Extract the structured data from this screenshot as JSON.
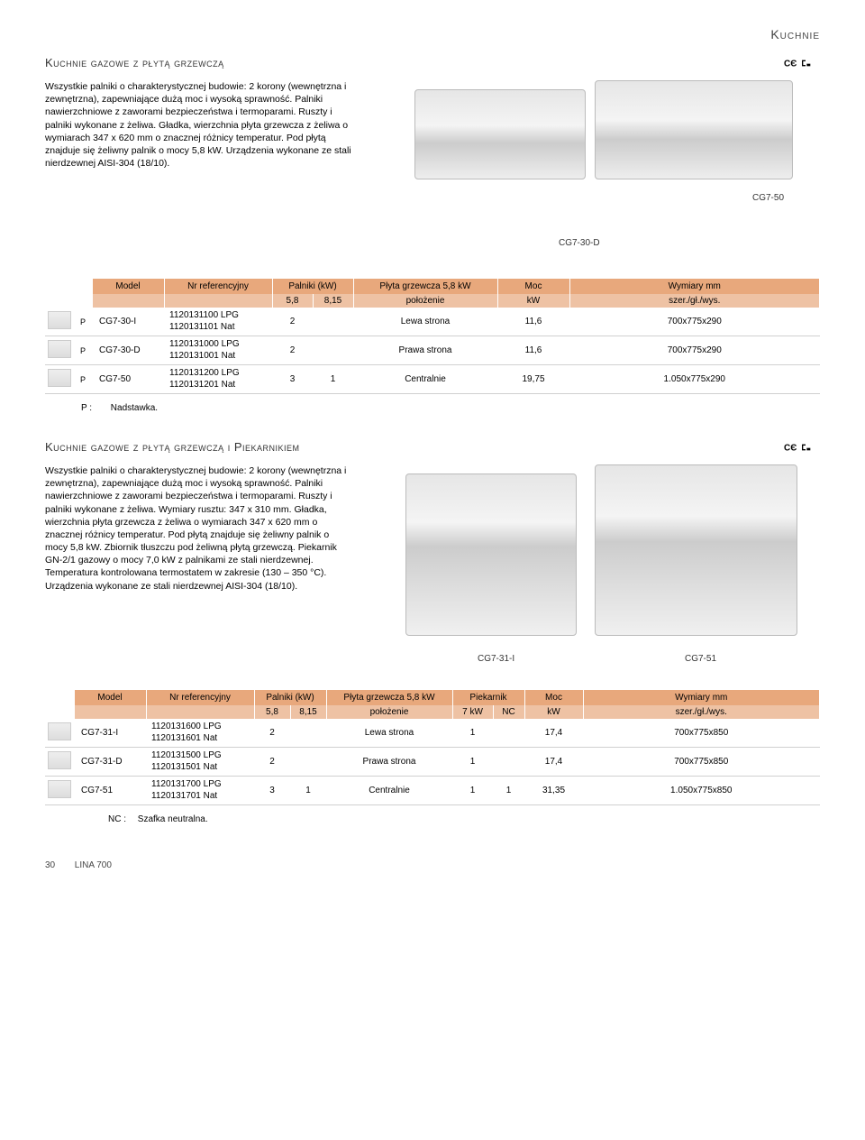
{
  "header": {
    "top_right": "Kuchnie"
  },
  "sections": [
    {
      "title": "Kuchnie gazowe z płytą grzewczą",
      "desc": "Wszystkie palniki o charakterystycznej budowie: 2 korony (wewnętrzna i zewnętrzna), zapewniające dużą moc i wysoką sprawność. Palniki nawierzchniowe z zaworami bezpieczeństwa i termoparami. Ruszty i palniki wykonane z żeliwa. Gładka, wierzchnia płyta grzewcza z żeliwa o wymiarach 347 x 620 mm o znacznej różnicy temperatur. Pod płytą znajduje się żeliwny palnik o mocy 5,8 kW. Urządzenia wykonane ze stali nierdzewnej AISI-304 (18/10).",
      "image_labels": {
        "back": "CG7-30-D",
        "right": "CG7-50"
      }
    },
    {
      "title": "Kuchnie gazowe z płytą grzewczą i Piekarnikiem",
      "desc": "Wszystkie palniki o charakterystycznej budowie: 2 korony (wewnętrzna i zewnętrzna), zapewniające dużą moc i wysoką sprawność. Palniki nawierzchniowe z zaworami bezpieczeństwa i termoparami. Ruszty i palniki wykonane z żeliwa. Wymiary rusztu: 347 x 310 mm. Gładka, wierzchnia płyta grzewcza z żeliwa o wymiarach 347 x 620 mm o znacznej różnicy temperatur. Pod płytą znajduje się żeliwny palnik o mocy 5,8 kW. Zbiornik tłuszczu pod żeliwną płytą grzewczą. Piekarnik GN-2/1 gazowy o mocy 7,0 kW z palnikami ze stali nierdzewnej. Temperatura kontrolowana termostatem w zakresie (130 – 350 °C). Urządzenia wykonane ze stali nierdzewnej AISI-304 (18/10).",
      "image_labels": {
        "left": "CG7-31-I",
        "right": "CG7-51"
      }
    }
  ],
  "table1": {
    "header_row1": [
      "Model",
      "Nr referencyjny",
      "Palniki (kW)",
      "Płyta grzewcza 5,8 kW",
      "Moc",
      "Wymiary mm"
    ],
    "header_row2": [
      "",
      "",
      "5,8",
      "8,15",
      "położenie",
      "kW",
      "szer./gł./wys."
    ],
    "rows": [
      {
        "p": "P",
        "model": "CG7-30-I",
        "ref1": "1120131100 LPG",
        "ref2": "1120131101 Nat",
        "b58": "2",
        "b815": "",
        "pos": "Lewa strona",
        "moc": "11,6",
        "dim": "700x775x290"
      },
      {
        "p": "P",
        "model": "CG7-30-D",
        "ref1": "1120131000 LPG",
        "ref2": "1120131001 Nat",
        "b58": "2",
        "b815": "",
        "pos": "Prawa strona",
        "moc": "11,6",
        "dim": "700x775x290"
      },
      {
        "p": "P",
        "model": "CG7-50",
        "ref1": "1120131200 LPG",
        "ref2": "1120131201 Nat",
        "b58": "3",
        "b815": "1",
        "pos": "Centralnie",
        "moc": "19,75",
        "dim": "1.050x775x290"
      }
    ],
    "note": {
      "key": "P :",
      "text": "Nadstawka."
    }
  },
  "table2": {
    "header_row1": [
      "Model",
      "Nr referencyjny",
      "Palniki (kW)",
      "Płyta grzewcza 5,8 kW",
      "Piekarnik",
      "Moc",
      "Wymiary mm"
    ],
    "header_row2": [
      "",
      "",
      "5,8",
      "8,15",
      "położenie",
      "7 kW",
      "NC",
      "kW",
      "szer./gł./wys."
    ],
    "rows": [
      {
        "model": "CG7-31-I",
        "ref1": "1120131600 LPG",
        "ref2": "1120131601 Nat",
        "b58": "2",
        "b815": "",
        "pos": "Lewa strona",
        "p7": "1",
        "nc": "",
        "moc": "17,4",
        "dim": "700x775x850"
      },
      {
        "model": "CG7-31-D",
        "ref1": "1120131500 LPG",
        "ref2": "1120131501 Nat",
        "b58": "2",
        "b815": "",
        "pos": "Prawa strona",
        "p7": "1",
        "nc": "",
        "moc": "17,4",
        "dim": "700x775x850"
      },
      {
        "model": "CG7-51",
        "ref1": "1120131700 LPG",
        "ref2": "1120131701 Nat",
        "b58": "3",
        "b815": "1",
        "pos": "Centralnie",
        "p7": "1",
        "nc": "1",
        "moc": "31,35",
        "dim": "1.050x775x850"
      }
    ],
    "note": {
      "key": "NC :",
      "text": "Szafka neutralna."
    }
  },
  "footer": {
    "page": "30",
    "series": "LINA 700"
  },
  "colors": {
    "header_bg": "#e8a87c",
    "subheader_bg": "#eec2a4",
    "row_border": "#d0d0d0"
  }
}
